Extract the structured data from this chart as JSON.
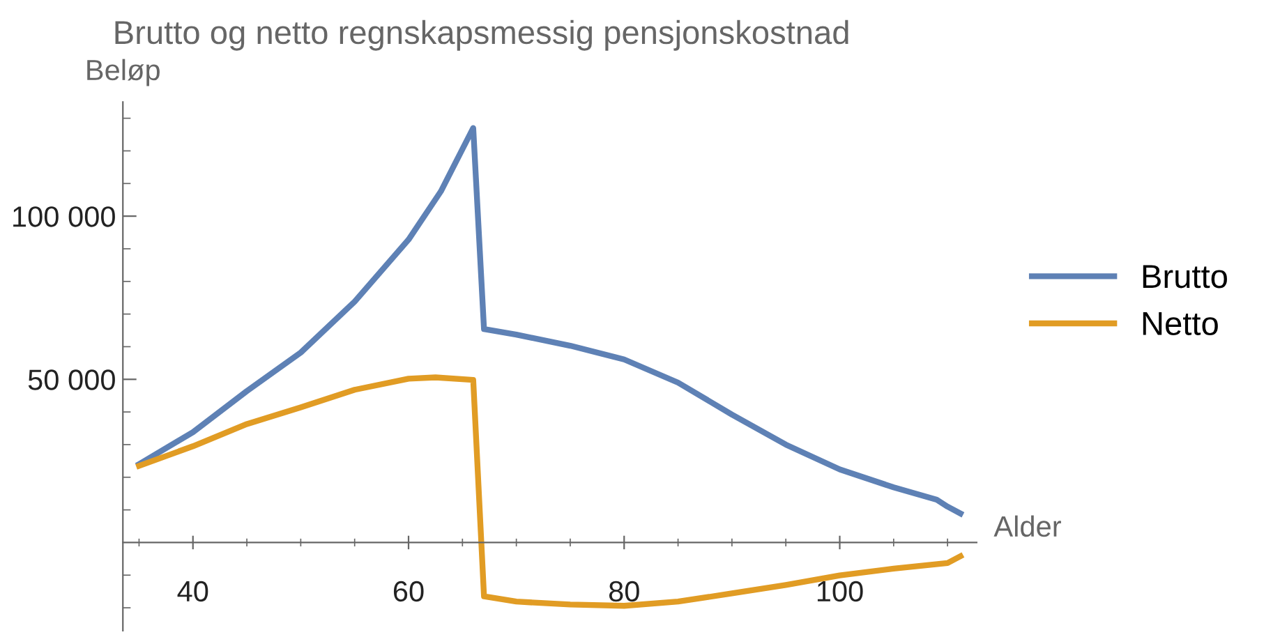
{
  "chart_data": {
    "type": "line",
    "title": "Brutto og netto regnskapsmessig pensjonskostnad",
    "xlabel": "Alder",
    "ylabel": "Beløp",
    "series": [
      {
        "name": "Brutto",
        "color": "#5e81b5",
        "x": [
          35,
          40,
          45,
          50,
          55,
          60,
          63,
          66,
          67,
          70,
          75,
          80,
          85,
          90,
          95,
          100,
          105,
          109,
          110,
          111.2
        ],
        "values": [
          24000,
          33800,
          46400,
          58200,
          73800,
          92800,
          107600,
          127000,
          65400,
          63700,
          60300,
          56100,
          49000,
          39200,
          30000,
          22400,
          16900,
          13100,
          11000,
          8900
        ]
      },
      {
        "name": "Netto",
        "color": "#e19c24",
        "x": [
          35,
          40,
          45,
          50,
          55,
          60,
          62.5,
          66,
          67,
          70,
          75,
          80,
          85,
          90,
          95,
          100,
          105,
          110,
          111.2
        ],
        "values": [
          23500,
          29500,
          36300,
          41400,
          46800,
          50200,
          50600,
          49800,
          -16500,
          -18100,
          -19000,
          -19400,
          -18100,
          -15600,
          -13000,
          -10100,
          -8000,
          -6300,
          -4200
        ]
      }
    ],
    "xlim": [
      33.5,
      112.7
    ],
    "ylim": [
      -27000,
      135000
    ],
    "xticks": [
      {
        "value": 35,
        "label": null
      },
      40,
      {
        "value": 45,
        "label": null
      },
      {
        "value": 50,
        "label": null
      },
      {
        "value": 55,
        "label": null
      },
      60,
      {
        "value": 65,
        "label": null
      },
      {
        "value": 70,
        "label": null
      },
      {
        "value": 75,
        "label": null
      },
      80,
      {
        "value": 85,
        "label": null
      },
      {
        "value": 90,
        "label": null
      },
      {
        "value": 95,
        "label": null
      },
      100,
      {
        "value": 105,
        "label": null
      },
      {
        "value": 110,
        "label": null
      }
    ],
    "yticks": [
      {
        "value": -20000,
        "label": null
      },
      {
        "value": -10000,
        "label": null
      },
      {
        "value": 10000,
        "label": null
      },
      {
        "value": 20000,
        "label": null
      },
      {
        "value": 30000,
        "label": null
      },
      {
        "value": 40000,
        "label": null
      },
      {
        "value": 50000,
        "label": "50 000"
      },
      {
        "value": 60000,
        "label": null
      },
      {
        "value": 70000,
        "label": null
      },
      {
        "value": 80000,
        "label": null
      },
      {
        "value": 90000,
        "label": null
      },
      {
        "value": 100000,
        "label": "100 000"
      },
      {
        "value": 110000,
        "label": null
      },
      {
        "value": 120000,
        "label": null
      },
      {
        "value": 130000,
        "label": null
      }
    ],
    "grid": false,
    "legend": "right"
  }
}
